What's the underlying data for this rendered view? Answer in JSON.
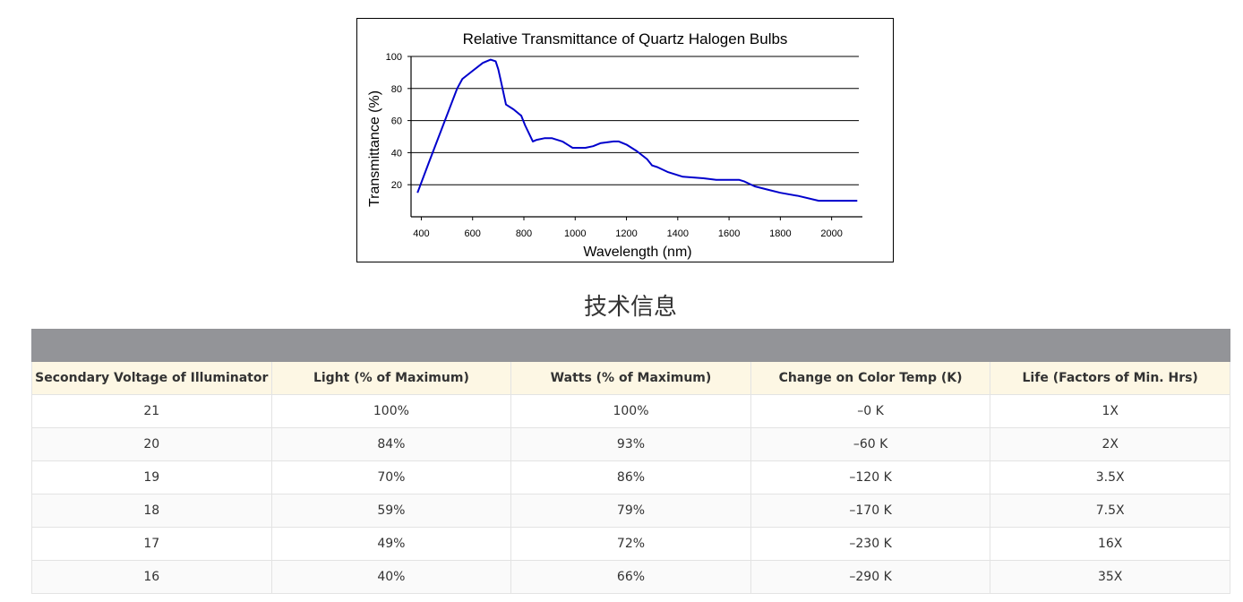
{
  "chart_data": {
    "type": "line",
    "title": "Relative Transmittance of Quartz Halogen Bulbs",
    "xlabel": "Wavelength (nm)",
    "ylabel": "Transmittance (%)",
    "xlim": [
      360,
      2120
    ],
    "ylim": [
      0,
      100
    ],
    "x_ticks": [
      400,
      600,
      800,
      1000,
      1200,
      1400,
      1600,
      1800,
      2000
    ],
    "y_ticks": [
      20,
      40,
      60,
      80,
      100
    ],
    "grid": "horizontal",
    "line_color": "#0000cc",
    "series": [
      {
        "x": [
          385,
          430,
          480,
          540,
          560,
          600,
          640,
          670,
          690,
          700,
          710,
          730,
          760,
          790,
          805,
          820,
          835,
          850,
          880,
          910,
          950,
          990,
          1020,
          1040,
          1070,
          1100,
          1150,
          1170,
          1200,
          1240,
          1280,
          1300,
          1320,
          1360,
          1420,
          1500,
          1550,
          1580,
          1640,
          1660,
          1700,
          1750,
          1800,
          1870,
          1950,
          2000,
          2050,
          2100
        ],
        "values": [
          15,
          34,
          55,
          80,
          86,
          91,
          96,
          98,
          97,
          92,
          85,
          70,
          67,
          63,
          57,
          52,
          47,
          48,
          49,
          49,
          47,
          43,
          43,
          43,
          44,
          46,
          47,
          47,
          45,
          41,
          36,
          32,
          31,
          28,
          25,
          24,
          23,
          23,
          23,
          22,
          19,
          17,
          15,
          13,
          10,
          10,
          10,
          10
        ]
      }
    ]
  },
  "section_title": "技术信息",
  "table": {
    "headers": [
      "Secondary Voltage of Illuminator",
      "Light (% of Maximum)",
      "Watts (% of Maximum)",
      "Change on Color Temp (K)",
      "Life (Factors of Min. Hrs)"
    ],
    "rows": [
      [
        "21",
        "100%",
        "100%",
        "–0 K",
        "1X"
      ],
      [
        "20",
        "84%",
        "93%",
        "–60 K",
        "2X"
      ],
      [
        "19",
        "70%",
        "86%",
        "–120 K",
        "3.5X"
      ],
      [
        "18",
        "59%",
        "79%",
        "–170 K",
        "7.5X"
      ],
      [
        "17",
        "49%",
        "72%",
        "–230 K",
        "16X"
      ],
      [
        "16",
        "40%",
        "66%",
        "–290 K",
        "35X"
      ]
    ]
  }
}
